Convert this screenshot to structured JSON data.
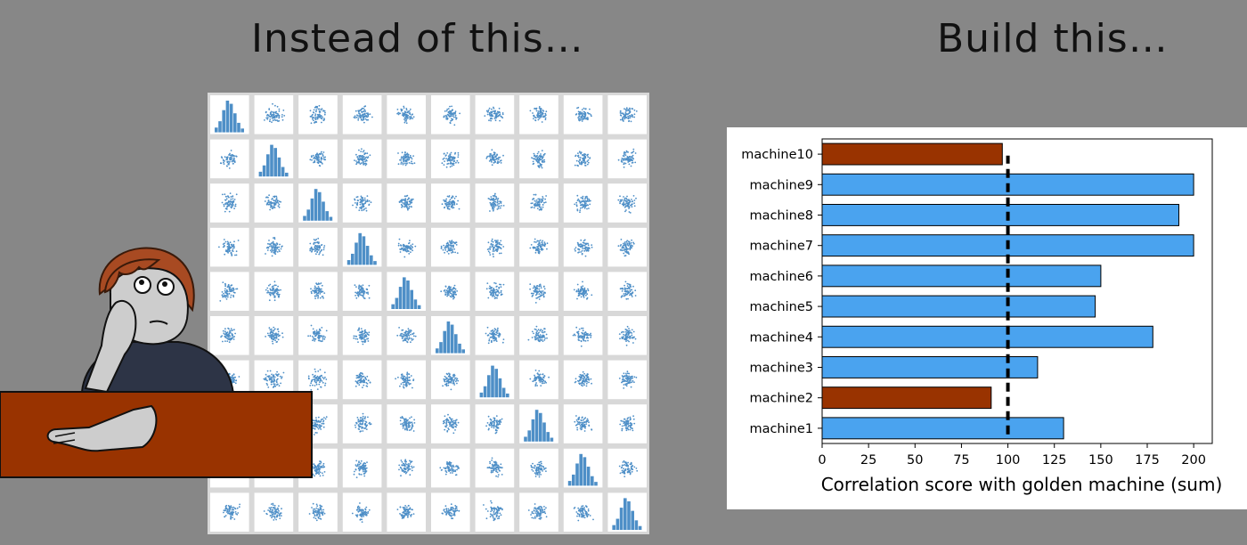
{
  "left_heading": "Instead of this…",
  "right_heading": "Build this…",
  "pairplot": {
    "variables": 10,
    "point_color": "#4e8fc7",
    "hist_color": "#4e8fc7"
  },
  "chart_data": {
    "type": "bar",
    "orientation": "horizontal",
    "categories": [
      "machine1",
      "machine2",
      "machine3",
      "machine4",
      "machine5",
      "machine6",
      "machine7",
      "machine8",
      "machine9",
      "machine10"
    ],
    "values": [
      130,
      91,
      116,
      178,
      147,
      150,
      200,
      192,
      200,
      97
    ],
    "colors": [
      "#4aa3ef",
      "#993300",
      "#4aa3ef",
      "#4aa3ef",
      "#4aa3ef",
      "#4aa3ef",
      "#4aa3ef",
      "#4aa3ef",
      "#4aa3ef",
      "#993300"
    ],
    "xlabel": "Correlation score with golden machine (sum)",
    "ylabel": "",
    "xlim": [
      0,
      210
    ],
    "xticks": [
      0,
      25,
      50,
      75,
      100,
      125,
      150,
      175,
      200
    ],
    "reference_line": {
      "x": 100,
      "style": "dashed",
      "color": "#000000"
    },
    "grid": false,
    "legend": false
  }
}
